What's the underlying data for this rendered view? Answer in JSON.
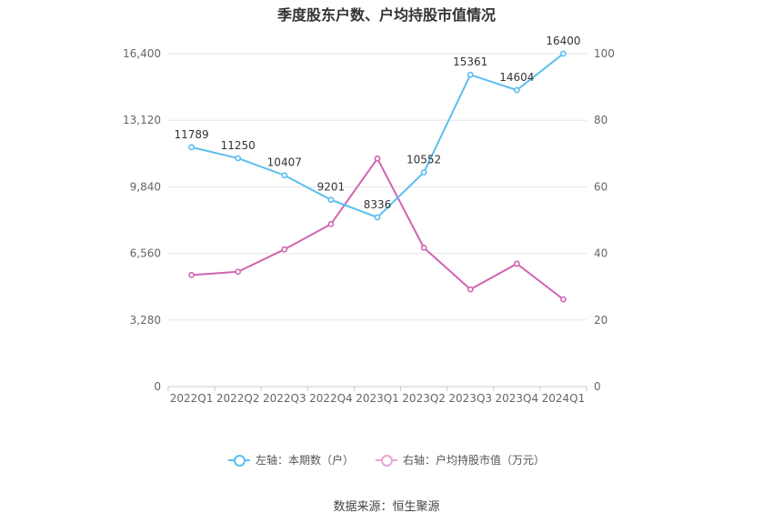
{
  "chart_data": {
    "type": "line",
    "title": "季度股东户数、户均持股市值情况",
    "categories": [
      "2022Q1",
      "2022Q2",
      "2022Q3",
      "2022Q4",
      "2023Q1",
      "2023Q2",
      "2023Q3",
      "2023Q4",
      "2024Q1"
    ],
    "left_axis": {
      "ticks": [
        "0",
        "3,280",
        "6,560",
        "9,840",
        "13,120",
        "16,400"
      ],
      "ylim": [
        0,
        16400
      ]
    },
    "right_axis": {
      "ticks": [
        "0",
        "20",
        "40",
        "60",
        "80",
        "100"
      ],
      "ylim": [
        0,
        100
      ]
    },
    "series": [
      {
        "name": "左轴：本期数（户）",
        "axis": "left",
        "color": "#5bbfef",
        "values": [
          11789,
          11250,
          10407,
          9201,
          8336,
          10552,
          15361,
          14604,
          16400
        ],
        "labels": [
          "11789",
          "11250",
          "10407",
          "9201",
          "8336",
          "10552",
          "15361",
          "14604",
          "16400"
        ]
      },
      {
        "name": "右轴：户均持股市值（万元）",
        "axis": "right",
        "color": "#d065b0",
        "values": [
          33.5,
          34.5,
          41.2,
          48.8,
          68.5,
          41.7,
          29.2,
          36.9,
          26.2
        ]
      }
    ],
    "grid": true,
    "legend_position": "bottom"
  },
  "legend": {
    "left_label": "左轴：本期数（户）",
    "right_label": "右轴：户均持股市值（万元）"
  },
  "source": "数据来源：恒生聚源"
}
